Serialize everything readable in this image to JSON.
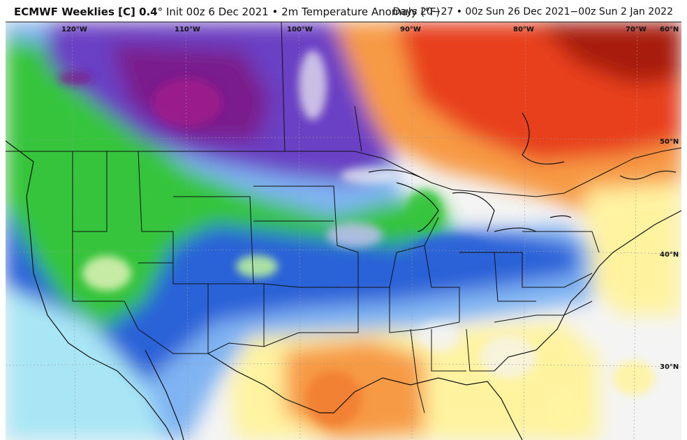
{
  "header": {
    "model": "ECMWF Weeklies [C] 0.4",
    "degree": "°",
    "init": "Init 00z 6 Dec 2021",
    "separator": "•",
    "field": "2m Temperature Anomaly (°F)",
    "valid": "Days 20−27 • 00z Sun 26 Dec 2021−00z Sun 2 Jan 2022"
  },
  "map": {
    "longitude_labels": [
      "120°W",
      "110°W",
      "100°W",
      "90°W",
      "80°W",
      "70°W",
      "60°N"
    ],
    "latitude_labels": [
      "50°N",
      "40°N",
      "30°N"
    ],
    "colors": {
      "deep_purple": "#7a1a8c",
      "purple": "#6b3fc4",
      "lavender": "#b5a4f0",
      "green": "#34c43a",
      "blue": "#2c62d8",
      "light_blue": "#7fb3f2",
      "cyan": "#a9e6f5",
      "white": "#f4f4f4",
      "yellow": "#fff3a0",
      "orange": "#f79a44",
      "red": "#e8401c",
      "dark_red": "#a81a0a"
    }
  }
}
